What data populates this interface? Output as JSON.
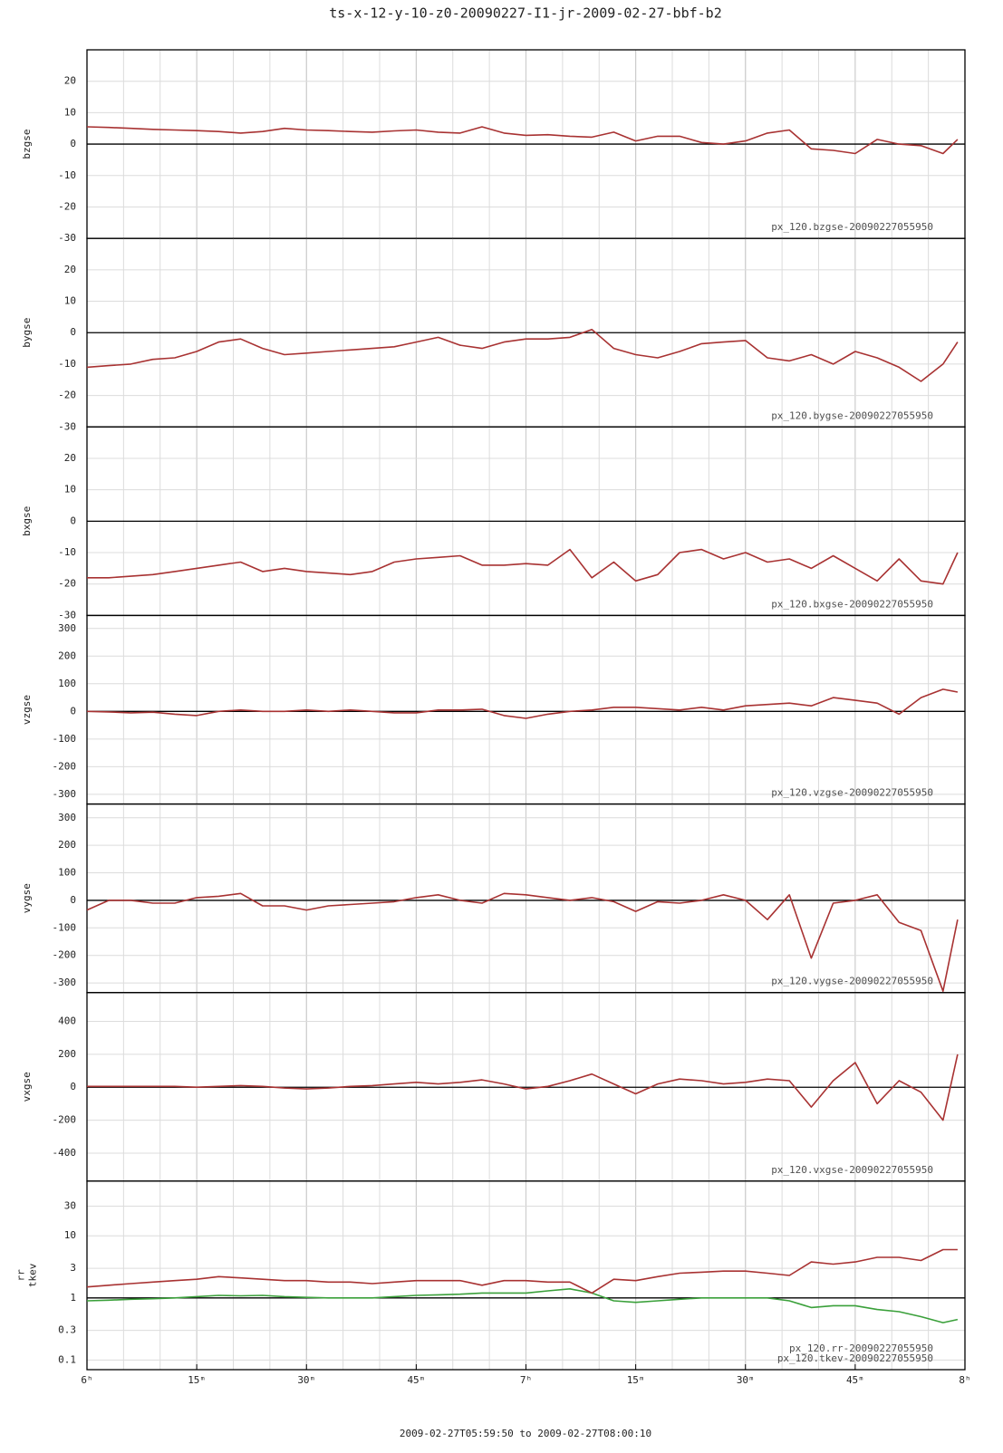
{
  "title": "ts-x-12-y-10-z0-20090227-I1-jr-2009-02-27-bbf-b2",
  "x_range_label": "2009-02-27T05:59:50 to 2009-02-27T08:00:10",
  "chart_data": [
    {
      "type": "line",
      "ylabel": [
        "bzgse"
      ],
      "xlim": [
        0,
        120
      ],
      "xticks": [
        0,
        15,
        30,
        45,
        60,
        75,
        90,
        105,
        120
      ],
      "x_minor_step": 5,
      "ylim": [
        -30,
        30
      ],
      "yticks": [
        20,
        10,
        0,
        -10,
        -20,
        -30
      ],
      "grid": true,
      "x": [
        0,
        3,
        6,
        9,
        12,
        15,
        18,
        21,
        24,
        27,
        30,
        33,
        36,
        39,
        42,
        45,
        48,
        51,
        54,
        57,
        60,
        63,
        66,
        69,
        72,
        75,
        78,
        81,
        84,
        87,
        90,
        93,
        96,
        99,
        102,
        105,
        108,
        111,
        114,
        117,
        119
      ],
      "series": [
        {
          "name": "px_120.bzgse-20090227055950",
          "color": "#a83232",
          "values": [
            5.5,
            5.3,
            5,
            4.7,
            4.5,
            4.3,
            4,
            3.5,
            4,
            5,
            4.5,
            4.3,
            4,
            3.8,
            4.2,
            4.5,
            3.8,
            3.5,
            5.5,
            3.5,
            2.8,
            3,
            2.5,
            2.2,
            3.8,
            1,
            2.5,
            2.5,
            0.5,
            0,
            1,
            3.5,
            4.5,
            -1.5,
            -2,
            -3,
            1.5,
            0,
            -0.5,
            -3,
            1.5
          ]
        }
      ]
    },
    {
      "type": "line",
      "ylabel": [
        "bygse"
      ],
      "xlim": [
        0,
        120
      ],
      "xticks": [
        0,
        15,
        30,
        45,
        60,
        75,
        90,
        105,
        120
      ],
      "x_minor_step": 5,
      "ylim": [
        -30,
        30
      ],
      "yticks": [
        20,
        10,
        0,
        -10,
        -20,
        -30
      ],
      "grid": true,
      "x": [
        0,
        3,
        6,
        9,
        12,
        15,
        18,
        21,
        24,
        27,
        30,
        33,
        36,
        39,
        42,
        45,
        48,
        51,
        54,
        57,
        60,
        63,
        66,
        69,
        72,
        75,
        78,
        81,
        84,
        87,
        90,
        93,
        96,
        99,
        102,
        105,
        108,
        111,
        114,
        117,
        119
      ],
      "series": [
        {
          "name": "px_120.bygse-20090227055950",
          "color": "#a83232",
          "values": [
            -11,
            -10.5,
            -10,
            -8.5,
            -8,
            -6,
            -3,
            -2,
            -5,
            -7,
            -6.5,
            -6,
            -5.5,
            -5,
            -4.5,
            -3,
            -1.5,
            -4,
            -5,
            -3,
            -2,
            -2,
            -1.5,
            1,
            -5,
            -7,
            -8,
            -6,
            -3.5,
            -3,
            -2.5,
            -8,
            -9,
            -7,
            -10,
            -6,
            -8,
            -11,
            -15.5,
            -10,
            -3
          ]
        }
      ]
    },
    {
      "type": "line",
      "ylabel": [
        "bxgse"
      ],
      "xlim": [
        0,
        120
      ],
      "xticks": [
        0,
        15,
        30,
        45,
        60,
        75,
        90,
        105,
        120
      ],
      "x_minor_step": 5,
      "ylim": [
        -30,
        30
      ],
      "yticks": [
        20,
        10,
        0,
        -10,
        -20,
        -30
      ],
      "grid": true,
      "x": [
        0,
        3,
        6,
        9,
        12,
        15,
        18,
        21,
        24,
        27,
        30,
        33,
        36,
        39,
        42,
        45,
        48,
        51,
        54,
        57,
        60,
        63,
        66,
        69,
        72,
        75,
        78,
        81,
        84,
        87,
        90,
        93,
        96,
        99,
        102,
        105,
        108,
        111,
        114,
        117,
        119
      ],
      "series": [
        {
          "name": "px_120.bxgse-20090227055950",
          "color": "#a83232",
          "values": [
            -18,
            -18,
            -17.5,
            -17,
            -16,
            -15,
            -14,
            -13,
            -16,
            -15,
            -16,
            -16.5,
            -17,
            -16,
            -13,
            -12,
            -11.5,
            -11,
            -14,
            -14,
            -13.5,
            -14,
            -9,
            -18,
            -13,
            -19,
            -17,
            -10,
            -9,
            -12,
            -10,
            -13,
            -12,
            -15,
            -11,
            -15,
            -19,
            -12,
            -19,
            -20,
            -10
          ]
        }
      ]
    },
    {
      "type": "line",
      "ylabel": [
        "vzgse"
      ],
      "xlim": [
        0,
        120
      ],
      "xticks": [
        0,
        15,
        30,
        45,
        60,
        75,
        90,
        105,
        120
      ],
      "x_minor_step": 5,
      "ylim": [
        -335,
        347
      ],
      "yticks": [
        300,
        200,
        100,
        0,
        -100,
        -200,
        -300
      ],
      "grid": true,
      "x": [
        0,
        3,
        6,
        9,
        12,
        15,
        18,
        21,
        24,
        27,
        30,
        33,
        36,
        39,
        42,
        45,
        48,
        51,
        54,
        57,
        60,
        63,
        66,
        69,
        72,
        75,
        78,
        81,
        84,
        87,
        90,
        93,
        96,
        99,
        102,
        105,
        108,
        111,
        114,
        117,
        119
      ],
      "series": [
        {
          "name": "px_120.vzgse-20090227055950",
          "color": "#a83232",
          "values": [
            0,
            -2,
            -5,
            -3,
            -10,
            -15,
            0,
            5,
            0,
            0,
            5,
            0,
            5,
            0,
            -5,
            -5,
            5,
            5,
            8,
            -15,
            -25,
            -10,
            0,
            5,
            15,
            15,
            10,
            5,
            15,
            5,
            20,
            25,
            30,
            20,
            50,
            40,
            30,
            -10,
            50,
            80,
            70
          ]
        }
      ]
    },
    {
      "type": "line",
      "ylabel": [
        "vygse"
      ],
      "xlim": [
        0,
        120
      ],
      "xticks": [
        0,
        15,
        30,
        45,
        60,
        75,
        90,
        105,
        120
      ],
      "x_minor_step": 5,
      "ylim": [
        -335,
        350
      ],
      "yticks": [
        300,
        200,
        100,
        0,
        -100,
        -200,
        -300
      ],
      "grid": true,
      "x": [
        0,
        3,
        6,
        9,
        12,
        15,
        18,
        21,
        24,
        27,
        30,
        33,
        36,
        39,
        42,
        45,
        48,
        51,
        54,
        57,
        60,
        63,
        66,
        69,
        72,
        75,
        78,
        81,
        84,
        87,
        90,
        93,
        96,
        99,
        102,
        105,
        108,
        111,
        114,
        117,
        119
      ],
      "series": [
        {
          "name": "px_120.vygse-20090227055950",
          "color": "#a83232",
          "values": [
            -35,
            0,
            0,
            -10,
            -10,
            10,
            15,
            25,
            -20,
            -20,
            -35,
            -20,
            -15,
            -10,
            -5,
            10,
            20,
            0,
            -10,
            25,
            20,
            10,
            0,
            10,
            -5,
            -40,
            -5,
            -10,
            0,
            20,
            0,
            -70,
            20,
            -210,
            -10,
            0,
            20,
            -80,
            -110,
            -330,
            -70
          ]
        }
      ]
    },
    {
      "type": "line",
      "ylabel": [
        "vxgse"
      ],
      "xlim": [
        0,
        120
      ],
      "xticks": [
        0,
        15,
        30,
        45,
        60,
        75,
        90,
        105,
        120
      ],
      "x_minor_step": 5,
      "ylim": [
        -570,
        575
      ],
      "yticks": [
        400,
        200,
        0,
        -200,
        -400
      ],
      "grid": true,
      "x": [
        0,
        3,
        6,
        9,
        12,
        15,
        18,
        21,
        24,
        27,
        30,
        33,
        36,
        39,
        42,
        45,
        48,
        51,
        54,
        57,
        60,
        63,
        66,
        69,
        72,
        75,
        78,
        81,
        84,
        87,
        90,
        93,
        96,
        99,
        102,
        105,
        108,
        111,
        114,
        117,
        119
      ],
      "series": [
        {
          "name": "px_120.vxgse-20090227055950",
          "color": "#a83232",
          "values": [
            5,
            5,
            5,
            5,
            5,
            0,
            5,
            10,
            5,
            -5,
            -10,
            -5,
            5,
            10,
            20,
            30,
            20,
            30,
            45,
            20,
            -10,
            5,
            40,
            80,
            20,
            -40,
            20,
            50,
            40,
            20,
            30,
            50,
            40,
            -120,
            40,
            150,
            -100,
            40,
            -30,
            -200,
            200
          ]
        }
      ]
    },
    {
      "type": "line",
      "ylabel": [
        "rr",
        "tkev"
      ],
      "log_scale": true,
      "xlim": [
        0,
        120
      ],
      "x_minor_step": 5,
      "ylim": [
        0.07,
        76
      ],
      "yticks": [
        30,
        10,
        3,
        1,
        0.3,
        0.1
      ],
      "grid": true,
      "xticks": [
        {
          "value": 0,
          "label": "6ʰ"
        },
        {
          "value": 15,
          "label": "15ᵐ"
        },
        {
          "value": 30,
          "label": "30ᵐ"
        },
        {
          "value": 45,
          "label": "45ᵐ"
        },
        {
          "value": 60,
          "label": "7ʰ"
        },
        {
          "value": 75,
          "label": "15ᵐ"
        },
        {
          "value": 90,
          "label": "30ᵐ"
        },
        {
          "value": 105,
          "label": "45ᵐ"
        },
        {
          "value": 120,
          "label": "8ʰ"
        }
      ],
      "x": [
        0,
        3,
        6,
        9,
        12,
        15,
        18,
        21,
        24,
        27,
        30,
        33,
        36,
        39,
        42,
        45,
        48,
        51,
        54,
        57,
        60,
        63,
        66,
        69,
        72,
        75,
        78,
        81,
        84,
        87,
        90,
        93,
        96,
        99,
        102,
        105,
        108,
        111,
        114,
        117,
        119
      ],
      "series": [
        {
          "name": "px_120.rr-20090227055950",
          "color": "#3aa03a",
          "values": [
            0.9,
            0.92,
            0.95,
            0.97,
            1,
            1.05,
            1.1,
            1.08,
            1.1,
            1.05,
            1.02,
            1,
            1,
            1,
            1.05,
            1.1,
            1.12,
            1.15,
            1.2,
            1.2,
            1.2,
            1.3,
            1.4,
            1.2,
            0.9,
            0.85,
            0.9,
            0.95,
            1,
            1,
            1,
            1,
            0.9,
            0.7,
            0.75,
            0.75,
            0.65,
            0.6,
            0.5,
            0.4,
            0.45
          ]
        },
        {
          "name": "px_120.tkev-20090227055950",
          "color": "#a83232",
          "values": [
            1.5,
            1.6,
            1.7,
            1.8,
            1.9,
            2,
            2.2,
            2.1,
            2,
            1.9,
            1.9,
            1.8,
            1.8,
            1.7,
            1.8,
            1.9,
            1.9,
            1.9,
            1.6,
            1.9,
            1.9,
            1.8,
            1.8,
            1.2,
            2,
            1.9,
            2.2,
            2.5,
            2.6,
            2.7,
            2.7,
            2.5,
            2.3,
            3.8,
            3.5,
            3.8,
            4.5,
            4.5,
            4,
            6,
            6
          ]
        }
      ]
    }
  ]
}
